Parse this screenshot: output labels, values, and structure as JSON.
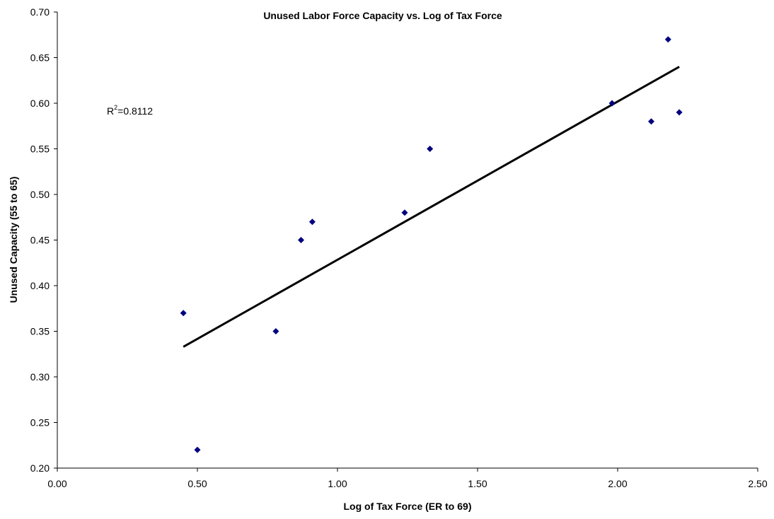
{
  "chart_data": {
    "type": "scatter",
    "title": "Unused Labor Force Capacity vs. Log of Tax Force",
    "xlabel": "Log of Tax Force (ER to 69)",
    "ylabel": "Unused Capacity (55 to 65)",
    "xlim": [
      0.0,
      2.5
    ],
    "ylim": [
      0.2,
      0.7
    ],
    "x_ticks": [
      0.0,
      0.5,
      1.0,
      1.5,
      2.0,
      2.5
    ],
    "x_tick_labels": [
      "0.00",
      "0.50",
      "1.00",
      "1.50",
      "2.00",
      "2.50"
    ],
    "y_ticks": [
      0.2,
      0.25,
      0.3,
      0.35,
      0.4,
      0.45,
      0.5,
      0.55,
      0.6,
      0.65,
      0.7
    ],
    "y_tick_labels": [
      "0.20",
      "0.25",
      "0.30",
      "0.35",
      "0.40",
      "0.45",
      "0.50",
      "0.55",
      "0.60",
      "0.65",
      "0.70"
    ],
    "grid": false,
    "legend": "none",
    "marker": "diamond",
    "series": [
      {
        "color": "#000080",
        "points": [
          {
            "x": 0.45,
            "y": 0.37
          },
          {
            "x": 0.5,
            "y": 0.22
          },
          {
            "x": 0.78,
            "y": 0.35
          },
          {
            "x": 0.87,
            "y": 0.45
          },
          {
            "x": 0.91,
            "y": 0.47
          },
          {
            "x": 1.24,
            "y": 0.48
          },
          {
            "x": 1.33,
            "y": 0.55
          },
          {
            "x": 1.98,
            "y": 0.6
          },
          {
            "x": 2.12,
            "y": 0.58
          },
          {
            "x": 2.18,
            "y": 0.67
          },
          {
            "x": 2.22,
            "y": 0.59
          }
        ]
      }
    ],
    "trendline": {
      "type": "linear",
      "color": "#000000",
      "x": [
        0.45,
        2.22
      ],
      "y": [
        0.333,
        0.64
      ]
    },
    "annotations": {
      "r2_prefix": "R",
      "r2_superscript": "2",
      "r2_value": "=0.8112"
    }
  }
}
